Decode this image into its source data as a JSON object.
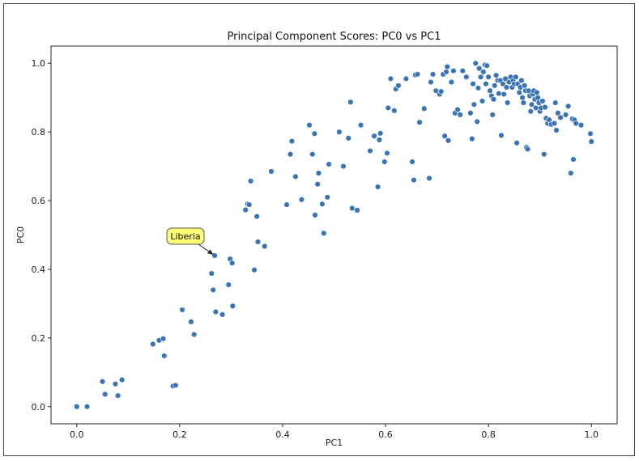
{
  "chart_data": {
    "type": "scatter",
    "title": "Principal Component Scores: PC0 vs PC1",
    "xlabel": "PC1",
    "ylabel": "PC0",
    "xlim": [
      -0.05,
      1.05
    ],
    "ylim": [
      -0.05,
      1.05
    ],
    "xticks": [
      0.0,
      0.2,
      0.4,
      0.6,
      0.8,
      1.0
    ],
    "xtick_labels": [
      "0.0",
      "0.2",
      "0.4",
      "0.6",
      "0.8",
      "1.0"
    ],
    "yticks": [
      0.0,
      0.2,
      0.4,
      0.6,
      0.8,
      1.0
    ],
    "ytick_labels": [
      "0.0",
      "0.2",
      "0.4",
      "0.6",
      "0.8",
      "1.0"
    ],
    "grid": false,
    "point_color": "#3a74b4",
    "annotation": {
      "label": "Liberia",
      "point": [
        0.268,
        0.44
      ],
      "box_color": "#ffff77"
    },
    "points": [
      [
        0.0,
        0.0
      ],
      [
        0.02,
        0.0
      ],
      [
        0.05,
        0.073
      ],
      [
        0.055,
        0.036
      ],
      [
        0.075,
        0.066
      ],
      [
        0.08,
        0.032
      ],
      [
        0.088,
        0.078
      ],
      [
        0.148,
        0.182
      ],
      [
        0.16,
        0.193
      ],
      [
        0.168,
        0.198
      ],
      [
        0.17,
        0.148
      ],
      [
        0.187,
        0.06
      ],
      [
        0.192,
        0.062
      ],
      [
        0.205,
        0.282
      ],
      [
        0.222,
        0.247
      ],
      [
        0.228,
        0.21
      ],
      [
        0.262,
        0.388
      ],
      [
        0.265,
        0.34
      ],
      [
        0.268,
        0.44
      ],
      [
        0.27,
        0.276
      ],
      [
        0.283,
        0.268
      ],
      [
        0.295,
        0.355
      ],
      [
        0.298,
        0.43
      ],
      [
        0.302,
        0.418
      ],
      [
        0.303,
        0.293
      ],
      [
        0.328,
        0.573
      ],
      [
        0.332,
        0.59
      ],
      [
        0.335,
        0.588
      ],
      [
        0.338,
        0.657
      ],
      [
        0.345,
        0.398
      ],
      [
        0.35,
        0.554
      ],
      [
        0.352,
        0.48
      ],
      [
        0.365,
        0.467
      ],
      [
        0.378,
        0.685
      ],
      [
        0.408,
        0.588
      ],
      [
        0.415,
        0.735
      ],
      [
        0.418,
        0.773
      ],
      [
        0.425,
        0.67
      ],
      [
        0.437,
        0.603
      ],
      [
        0.452,
        0.82
      ],
      [
        0.458,
        0.735
      ],
      [
        0.462,
        0.795
      ],
      [
        0.463,
        0.558
      ],
      [
        0.468,
        0.648
      ],
      [
        0.47,
        0.68
      ],
      [
        0.477,
        0.59
      ],
      [
        0.48,
        0.505
      ],
      [
        0.487,
        0.61
      ],
      [
        0.49,
        0.706
      ],
      [
        0.51,
        0.8
      ],
      [
        0.518,
        0.7
      ],
      [
        0.528,
        0.782
      ],
      [
        0.532,
        0.887
      ],
      [
        0.535,
        0.578
      ],
      [
        0.545,
        0.572
      ],
      [
        0.552,
        0.82
      ],
      [
        0.57,
        0.745
      ],
      [
        0.578,
        0.788
      ],
      [
        0.585,
        0.64
      ],
      [
        0.588,
        0.777
      ],
      [
        0.59,
        0.796
      ],
      [
        0.598,
        0.713
      ],
      [
        0.603,
        0.738
      ],
      [
        0.605,
        0.87
      ],
      [
        0.61,
        0.955
      ],
      [
        0.617,
        0.862
      ],
      [
        0.62,
        0.925
      ],
      [
        0.625,
        0.935
      ],
      [
        0.64,
        0.955
      ],
      [
        0.652,
        0.713
      ],
      [
        0.655,
        0.66
      ],
      [
        0.658,
        0.966
      ],
      [
        0.662,
        0.968
      ],
      [
        0.666,
        0.828
      ],
      [
        0.675,
        0.868
      ],
      [
        0.685,
        0.665
      ],
      [
        0.688,
        0.945
      ],
      [
        0.692,
        0.968
      ],
      [
        0.698,
        0.92
      ],
      [
        0.705,
        0.91
      ],
      [
        0.708,
        0.918
      ],
      [
        0.712,
        0.968
      ],
      [
        0.715,
        0.788
      ],
      [
        0.718,
        0.975
      ],
      [
        0.72,
        0.99
      ],
      [
        0.722,
        0.775
      ],
      [
        0.728,
        0.945
      ],
      [
        0.732,
        0.978
      ],
      [
        0.735,
        0.855
      ],
      [
        0.74,
        0.865
      ],
      [
        0.745,
        0.85
      ],
      [
        0.75,
        0.978
      ],
      [
        0.757,
        0.96
      ],
      [
        0.765,
        0.855
      ],
      [
        0.768,
        0.78
      ],
      [
        0.77,
        0.94
      ],
      [
        0.772,
        0.88
      ],
      [
        0.775,
        1.0
      ],
      [
        0.778,
        0.83
      ],
      [
        0.78,
        0.928
      ],
      [
        0.782,
        0.985
      ],
      [
        0.785,
        0.96
      ],
      [
        0.788,
        0.89
      ],
      [
        0.79,
        0.975
      ],
      [
        0.793,
        0.995
      ],
      [
        0.795,
        0.94
      ],
      [
        0.797,
        0.993
      ],
      [
        0.8,
        0.96
      ],
      [
        0.803,
        0.92
      ],
      [
        0.806,
        0.905
      ],
      [
        0.808,
        0.85
      ],
      [
        0.81,
        0.895
      ],
      [
        0.812,
        0.935
      ],
      [
        0.815,
        0.965
      ],
      [
        0.818,
        0.95
      ],
      [
        0.82,
        0.912
      ],
      [
        0.823,
        0.95
      ],
      [
        0.825,
        0.79
      ],
      [
        0.828,
        0.94
      ],
      [
        0.83,
        0.91
      ],
      [
        0.833,
        0.955
      ],
      [
        0.835,
        0.93
      ],
      [
        0.837,
        0.885
      ],
      [
        0.84,
        0.945
      ],
      [
        0.843,
        0.96
      ],
      [
        0.846,
        0.93
      ],
      [
        0.848,
        0.95
      ],
      [
        0.85,
        0.94
      ],
      [
        0.853,
        0.96
      ],
      [
        0.855,
        0.768
      ],
      [
        0.857,
        0.94
      ],
      [
        0.86,
        0.915
      ],
      [
        0.862,
        0.93
      ],
      [
        0.864,
        0.95
      ],
      [
        0.866,
        0.9
      ],
      [
        0.868,
        0.885
      ],
      [
        0.87,
        0.935
      ],
      [
        0.872,
        0.92
      ],
      [
        0.874,
        0.755
      ],
      [
        0.876,
        0.75
      ],
      [
        0.878,
        0.92
      ],
      [
        0.88,
        0.905
      ],
      [
        0.882,
        0.86
      ],
      [
        0.884,
        0.88
      ],
      [
        0.886,
        0.91
      ],
      [
        0.888,
        0.92
      ],
      [
        0.89,
        0.895
      ],
      [
        0.892,
        0.87
      ],
      [
        0.894,
        0.915
      ],
      [
        0.896,
        0.9
      ],
      [
        0.898,
        0.885
      ],
      [
        0.9,
        0.86
      ],
      [
        0.902,
        0.87
      ],
      [
        0.905,
        0.89
      ],
      [
        0.908,
        0.735
      ],
      [
        0.91,
        0.872
      ],
      [
        0.912,
        0.84
      ],
      [
        0.915,
        0.825
      ],
      [
        0.918,
        0.835
      ],
      [
        0.922,
        0.822
      ],
      [
        0.928,
        0.825
      ],
      [
        0.93,
        0.885
      ],
      [
        0.932,
        0.805
      ],
      [
        0.935,
        0.855
      ],
      [
        0.94,
        0.842
      ],
      [
        0.95,
        0.85
      ],
      [
        0.955,
        0.875
      ],
      [
        0.96,
        0.68
      ],
      [
        0.963,
        0.838
      ],
      [
        0.965,
        0.72
      ],
      [
        0.967,
        0.835
      ],
      [
        0.97,
        0.825
      ],
      [
        0.98,
        0.82
      ],
      [
        0.998,
        0.795
      ],
      [
        1.0,
        0.772
      ]
    ]
  }
}
